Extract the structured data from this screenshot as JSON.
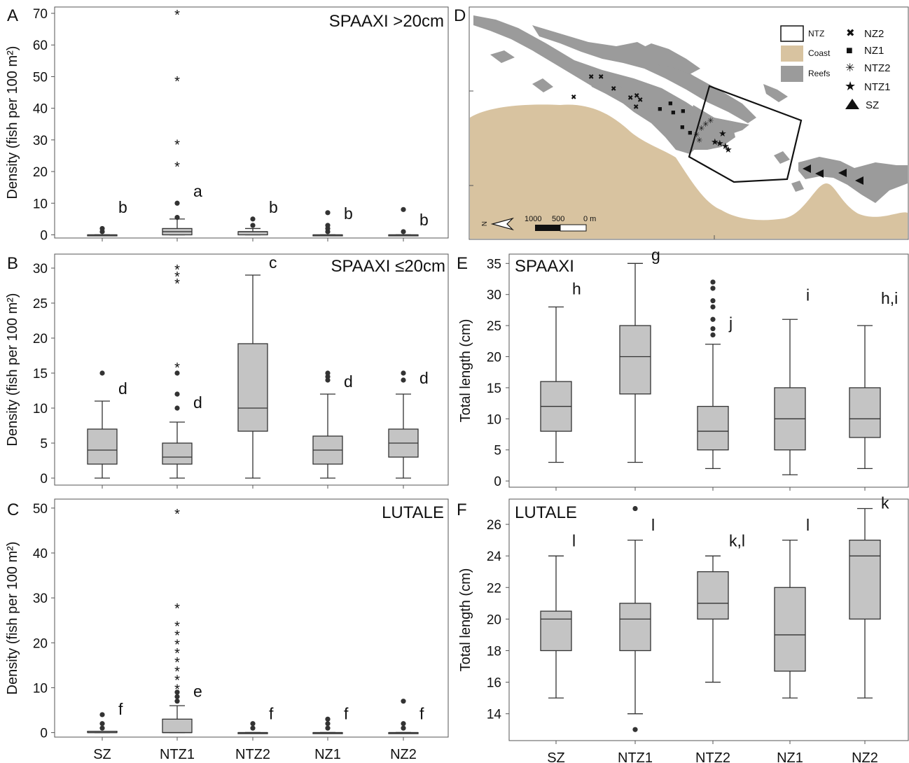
{
  "colors": {
    "box_fill": "#c4c4c4",
    "box_stroke": "#333333",
    "outlier": "#333333",
    "coast": "#d8c3a0",
    "reefs": "#9b9b9b",
    "frame": "#555555"
  },
  "panels": {
    "A": {
      "letter": "A",
      "title": "SPAAXI >20cm"
    },
    "B": {
      "letter": "B",
      "title": "SPAAXI ≤20cm"
    },
    "C": {
      "letter": "C",
      "title": "LUTALE"
    },
    "D": {
      "letter": "D"
    },
    "E": {
      "letter": "E",
      "title": "SPAAXI"
    },
    "F": {
      "letter": "F",
      "title": "LUTALE"
    }
  },
  "density_ylabel": "Density (fish per 100 m²)",
  "length_ylabel": "Total length (cm)",
  "map": {
    "legend": {
      "ntz": "NTZ",
      "coast": "Coast",
      "reefs": "Reefs",
      "nz2": "NZ2",
      "nz1": "NZ1",
      "ntz2": "NTZ2",
      "ntz1": "NTZ1",
      "sz": "SZ"
    },
    "north_label": "N",
    "scale_labels": [
      "1000",
      "500",
      "0 m"
    ],
    "symbols": {
      "nz2": "✖",
      "nz1": "■",
      "ntz2": "✳",
      "ntz1": "★",
      "sz": "▲"
    }
  },
  "chart_data": [
    {
      "id": "A",
      "type": "box",
      "title": "SPAAXI >20cm",
      "ylabel": "Density (fish per 100 m²)",
      "categories": [
        "SZ",
        "NTZ1",
        "NTZ2",
        "NZ1",
        "NZ2"
      ],
      "ylim": [
        -1,
        72
      ],
      "yticks": [
        0,
        10,
        20,
        30,
        40,
        50,
        60,
        70
      ],
      "boxes": [
        {
          "cat": "SZ",
          "min": 0,
          "q1": 0,
          "median": 0,
          "q3": 0,
          "max": 0,
          "outliers": [
            1,
            2
          ],
          "extremes": [],
          "letter": "b",
          "letter_y": 7
        },
        {
          "cat": "NTZ1",
          "min": 0,
          "q1": 0,
          "median": 1,
          "q3": 2,
          "max": 5,
          "outliers": [
            5.5,
            10
          ],
          "extremes": [
            22,
            29,
            49,
            70
          ],
          "letter": "a",
          "letter_y": 12
        },
        {
          "cat": "NTZ2",
          "min": 0,
          "q1": 0,
          "median": 1,
          "q3": 1,
          "max": 2,
          "outliers": [
            3,
            5
          ],
          "extremes": [],
          "letter": "b",
          "letter_y": 7
        },
        {
          "cat": "NZ1",
          "min": 0,
          "q1": 0,
          "median": 0,
          "q3": 0,
          "max": 0,
          "outliers": [
            1,
            2,
            3,
            7
          ],
          "extremes": [],
          "letter": "b",
          "letter_y": 5
        },
        {
          "cat": "NZ2",
          "min": 0,
          "q1": 0,
          "median": 0,
          "q3": 0,
          "max": 0,
          "outliers": [
            1,
            8
          ],
          "extremes": [],
          "letter": "b",
          "letter_y": 3
        }
      ]
    },
    {
      "id": "B",
      "type": "box",
      "title": "SPAAXI ≤20cm",
      "ylabel": "Density (fish per 100 m²)",
      "categories": [
        "SZ",
        "NTZ1",
        "NTZ2",
        "NZ1",
        "NZ2"
      ],
      "ylim": [
        -1,
        32
      ],
      "yticks": [
        0,
        5,
        10,
        15,
        20,
        25,
        30
      ],
      "boxes": [
        {
          "cat": "SZ",
          "min": 0,
          "q1": 2,
          "median": 4,
          "q3": 7,
          "max": 11,
          "outliers": [
            15
          ],
          "extremes": [],
          "letter": "d",
          "letter_y": 12
        },
        {
          "cat": "NTZ1",
          "min": 0,
          "q1": 2,
          "median": 3,
          "q3": 5,
          "max": 8,
          "outliers": [
            10,
            12,
            15
          ],
          "extremes": [
            16,
            28,
            29,
            30
          ],
          "letter": "d",
          "letter_y": 10
        },
        {
          "cat": "NTZ2",
          "min": 0,
          "q1": 6.7,
          "median": 10,
          "q3": 19.2,
          "max": 29,
          "outliers": [],
          "extremes": [],
          "letter": "c",
          "letter_y": 30
        },
        {
          "cat": "NZ1",
          "min": 0,
          "q1": 2,
          "median": 4,
          "q3": 6,
          "max": 12,
          "outliers": [
            14,
            14.5,
            15
          ],
          "extremes": [],
          "letter": "d",
          "letter_y": 13
        },
        {
          "cat": "NZ2",
          "min": 0,
          "q1": 3,
          "median": 5,
          "q3": 7,
          "max": 12,
          "outliers": [
            14,
            15
          ],
          "extremes": [],
          "letter": "d",
          "letter_y": 13.5
        }
      ]
    },
    {
      "id": "C",
      "type": "box",
      "title": "LUTALE",
      "ylabel": "Density (fish per 100 m²)",
      "categories": [
        "SZ",
        "NTZ1",
        "NTZ2",
        "NZ1",
        "NZ2"
      ],
      "ylim": [
        -1,
        52
      ],
      "yticks": [
        0,
        10,
        20,
        30,
        40,
        50
      ],
      "boxes": [
        {
          "cat": "SZ",
          "min": 0,
          "q1": 0,
          "median": 0,
          "q3": 0.3,
          "max": 0.3,
          "outliers": [
            1,
            2,
            4
          ],
          "extremes": [],
          "letter": "f",
          "letter_y": 4
        },
        {
          "cat": "NTZ1",
          "min": 0,
          "q1": 0,
          "median": 0,
          "q3": 3,
          "max": 6,
          "outliers": [
            7,
            8,
            9
          ],
          "extremes": [
            10,
            12,
            14,
            16,
            18,
            20,
            22,
            24,
            28,
            49
          ],
          "letter": "e",
          "letter_y": 8
        },
        {
          "cat": "NTZ2",
          "min": 0,
          "q1": 0,
          "median": 0,
          "q3": 0,
          "max": 0,
          "outliers": [
            1,
            2
          ],
          "extremes": [],
          "letter": "f",
          "letter_y": 3
        },
        {
          "cat": "NZ1",
          "min": 0,
          "q1": 0,
          "median": 0,
          "q3": 0,
          "max": 0,
          "outliers": [
            1,
            2,
            3
          ],
          "extremes": [],
          "letter": "f",
          "letter_y": 3
        },
        {
          "cat": "NZ2",
          "min": 0,
          "q1": 0,
          "median": 0,
          "q3": 0,
          "max": 0,
          "outliers": [
            1,
            2,
            7
          ],
          "extremes": [],
          "letter": "f",
          "letter_y": 3
        }
      ]
    },
    {
      "id": "E",
      "type": "box",
      "title": "SPAAXI",
      "ylabel": "Total length (cm)",
      "categories": [
        "SZ",
        "NTZ1",
        "NTZ2",
        "NZ1",
        "NZ2"
      ],
      "ylim": [
        -1,
        36.5
      ],
      "yticks": [
        0,
        5,
        10,
        15,
        20,
        25,
        30,
        35
      ],
      "boxes": [
        {
          "cat": "SZ",
          "min": 3,
          "q1": 8,
          "median": 12,
          "q3": 16,
          "max": 28,
          "outliers": [],
          "extremes": [],
          "letter": "h",
          "letter_y": 30
        },
        {
          "cat": "NTZ1",
          "min": 3,
          "q1": 14,
          "median": 20,
          "q3": 25,
          "max": 35,
          "outliers": [],
          "extremes": [],
          "letter": "g",
          "letter_y": 35.5
        },
        {
          "cat": "NTZ2",
          "min": 2,
          "q1": 5,
          "median": 8,
          "q3": 12,
          "max": 22,
          "outliers": [
            23.5,
            24.5,
            26,
            28,
            29,
            31,
            32
          ],
          "extremes": [],
          "letter": "j",
          "letter_y": 24.5
        },
        {
          "cat": "NZ1",
          "min": 1,
          "q1": 5,
          "median": 10,
          "q3": 15,
          "max": 26,
          "outliers": [],
          "extremes": [],
          "letter": "i",
          "letter_y": 29
        },
        {
          "cat": "NZ2",
          "min": 2,
          "q1": 7,
          "median": 10,
          "q3": 15,
          "max": 25,
          "outliers": [],
          "extremes": [],
          "letter": "h,i",
          "letter_y": 28.5
        }
      ]
    },
    {
      "id": "F",
      "type": "box",
      "title": "LUTALE",
      "ylabel": "Total length (cm)",
      "categories": [
        "SZ",
        "NTZ1",
        "NTZ2",
        "NZ1",
        "NZ2"
      ],
      "ylim": [
        12.3,
        27.6
      ],
      "yticks": [
        14,
        16,
        18,
        20,
        22,
        24,
        26
      ],
      "boxes": [
        {
          "cat": "SZ",
          "min": 15,
          "q1": 18,
          "median": 20,
          "q3": 20.5,
          "max": 24,
          "outliers": [],
          "extremes": [],
          "letter": "l",
          "letter_y": 24.6
        },
        {
          "cat": "NTZ1",
          "min": 14,
          "q1": 18,
          "median": 20,
          "q3": 21,
          "max": 25,
          "outliers": [
            13,
            27
          ],
          "extremes": [],
          "letter": "l",
          "letter_y": 25.6
        },
        {
          "cat": "NTZ2",
          "min": 16,
          "q1": 20,
          "median": 21,
          "q3": 23,
          "max": 24,
          "outliers": [],
          "extremes": [],
          "letter": "k,l",
          "letter_y": 24.6
        },
        {
          "cat": "NZ1",
          "min": 15,
          "q1": 16.7,
          "median": 19,
          "q3": 22,
          "max": 25,
          "outliers": [],
          "extremes": [],
          "letter": "l",
          "letter_y": 25.6
        },
        {
          "cat": "NZ2",
          "min": 15,
          "q1": 20,
          "median": 24,
          "q3": 25,
          "max": 27,
          "outliers": [],
          "extremes": [],
          "letter": "k",
          "letter_y": 27
        }
      ]
    }
  ]
}
